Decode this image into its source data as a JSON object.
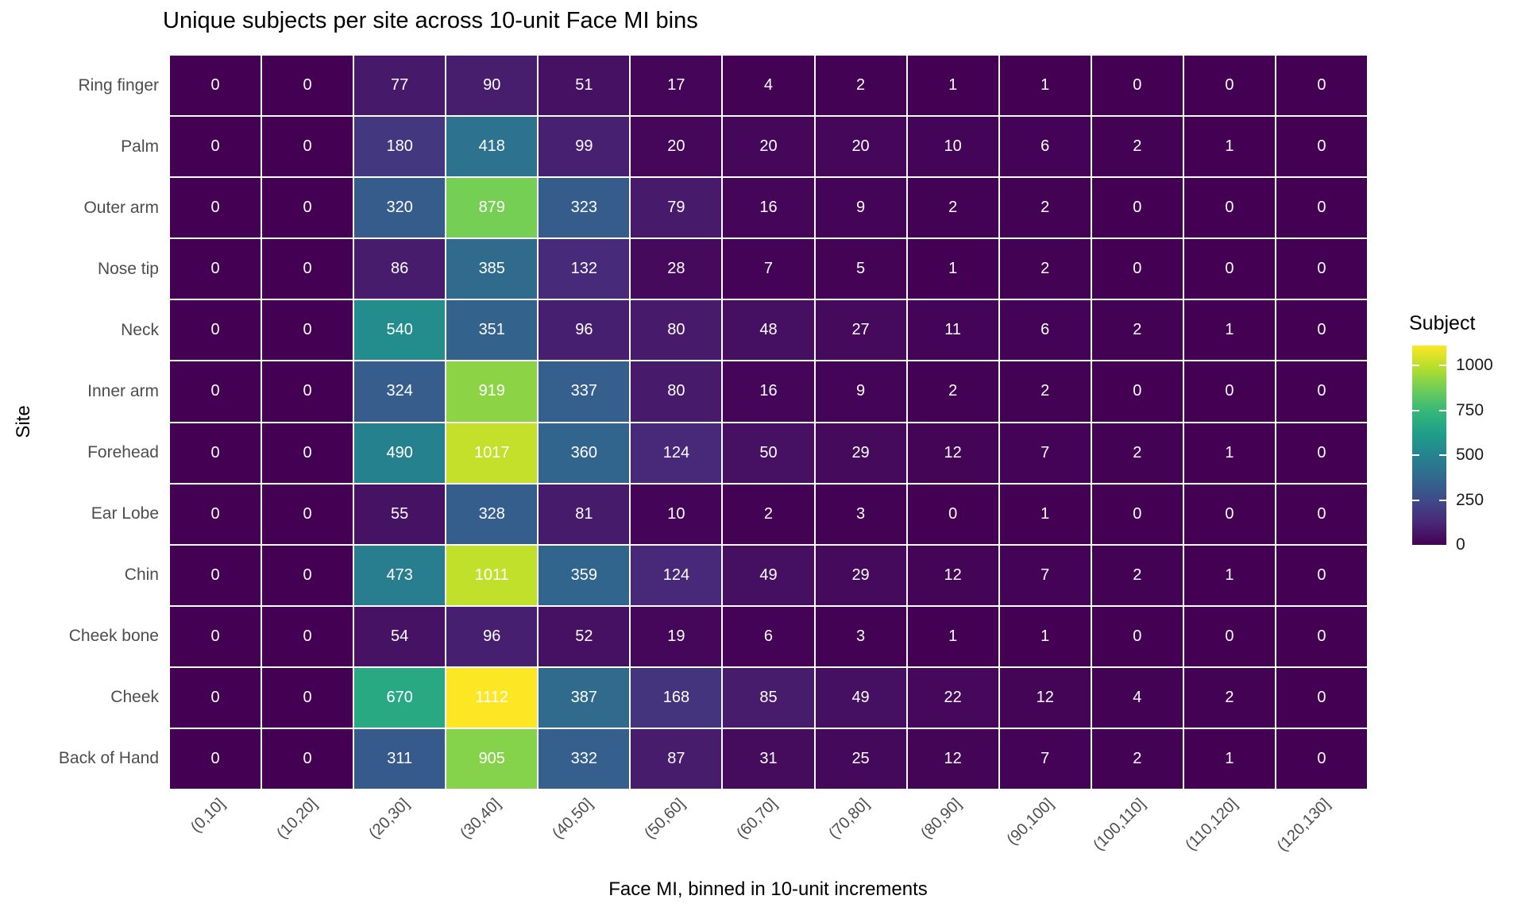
{
  "figure": {
    "title": "Unique subjects per site across 10-unit Face MI bins",
    "background": "#ffffff"
  },
  "chart_data": {
    "type": "heatmap",
    "title": "Unique subjects per site across 10-unit Face MI bins",
    "xlabel": "Face MI, binned in 10-unit increments",
    "ylabel": "Site",
    "x_categories": [
      "(0,10]",
      "(10,20]",
      "(20,30]",
      "(30,40]",
      "(40,50]",
      "(50,60]",
      "(60,70]",
      "(70,80]",
      "(80,90]",
      "(90,100]",
      "(100,110]",
      "(110,120]",
      "(120,130]"
    ],
    "y_categories_top_to_bottom": [
      "Ring finger",
      "Palm",
      "Outer arm",
      "Nose tip",
      "Neck",
      "Inner arm",
      "Forehead",
      "Ear Lobe",
      "Chin",
      "Cheek bone",
      "Cheek",
      "Back of Hand"
    ],
    "series": [
      {
        "name": "Ring finger",
        "values": [
          0,
          0,
          77,
          90,
          51,
          17,
          4,
          2,
          1,
          1,
          0,
          0,
          0
        ]
      },
      {
        "name": "Palm",
        "values": [
          0,
          0,
          180,
          418,
          99,
          20,
          20,
          20,
          10,
          6,
          2,
          1,
          0
        ]
      },
      {
        "name": "Outer arm",
        "values": [
          0,
          0,
          320,
          879,
          323,
          79,
          16,
          9,
          2,
          2,
          0,
          0,
          0
        ]
      },
      {
        "name": "Nose tip",
        "values": [
          0,
          0,
          86,
          385,
          132,
          28,
          7,
          5,
          1,
          2,
          0,
          0,
          0
        ]
      },
      {
        "name": "Neck",
        "values": [
          0,
          0,
          540,
          351,
          96,
          80,
          48,
          27,
          11,
          6,
          2,
          1,
          0
        ]
      },
      {
        "name": "Inner arm",
        "values": [
          0,
          0,
          324,
          919,
          337,
          80,
          16,
          9,
          2,
          2,
          0,
          0,
          0
        ]
      },
      {
        "name": "Forehead",
        "values": [
          0,
          0,
          490,
          1017,
          360,
          124,
          50,
          29,
          12,
          7,
          2,
          1,
          0
        ]
      },
      {
        "name": "Ear Lobe",
        "values": [
          0,
          0,
          55,
          328,
          81,
          10,
          2,
          3,
          0,
          1,
          0,
          0,
          0
        ]
      },
      {
        "name": "Chin",
        "values": [
          0,
          0,
          473,
          1011,
          359,
          124,
          49,
          29,
          12,
          7,
          2,
          1,
          0
        ]
      },
      {
        "name": "Cheek bone",
        "values": [
          0,
          0,
          54,
          96,
          52,
          19,
          6,
          3,
          1,
          1,
          0,
          0,
          0
        ]
      },
      {
        "name": "Cheek",
        "values": [
          0,
          0,
          670,
          1112,
          387,
          168,
          85,
          49,
          22,
          12,
          4,
          2,
          0
        ]
      },
      {
        "name": "Back of Hand",
        "values": [
          0,
          0,
          311,
          905,
          332,
          87,
          31,
          25,
          12,
          7,
          2,
          1,
          0
        ]
      }
    ],
    "colorscale": {
      "name": "viridis",
      "domain": [
        0,
        1112
      ],
      "anchors": [
        "#440154",
        "#482878",
        "#3E4A89",
        "#31688E",
        "#26828E",
        "#1F9E89",
        "#35B779",
        "#6DCD59",
        "#B4DE2C",
        "#FDE725"
      ]
    },
    "legend": {
      "title": "Subject",
      "position": "right",
      "ticks": [
        "1000",
        "750",
        "500",
        "250",
        "0"
      ],
      "tick_values": [
        1000,
        750,
        500,
        250,
        0
      ]
    },
    "style": {
      "grid_line_color": "#ffffff",
      "cell_text_color": "#ffffff",
      "axis_text_color": "#4d4d4d",
      "title_color": "#000000",
      "grid": "white lines between tiles",
      "x_tick_label_angle_deg": 45
    }
  }
}
